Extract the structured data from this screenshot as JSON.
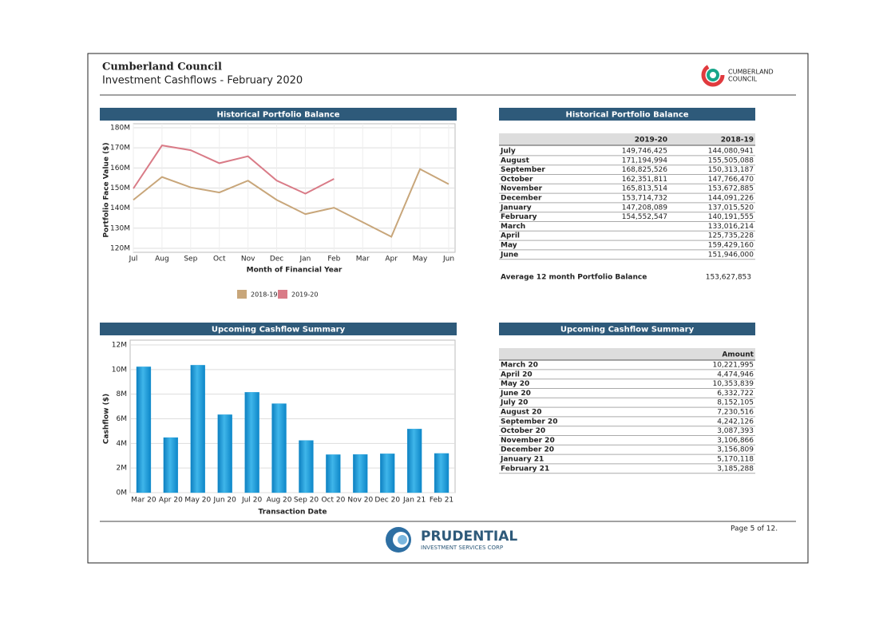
{
  "header": {
    "title": "Cumberland Council",
    "subtitle": "Investment Cashflows - February 2020",
    "logo_text": [
      "CUMBERLAND",
      "COUNCIL"
    ]
  },
  "chart_data": [
    {
      "type": "line",
      "title": "Historical Portfolio Balance",
      "y_label": "Portfolio Face Value ($)",
      "x_label": "Month of Financial Year",
      "categories": [
        "Jul",
        "Aug",
        "Sep",
        "Oct",
        "Nov",
        "Dec",
        "Jan",
        "Feb",
        "Mar",
        "Apr",
        "May",
        "Jun"
      ],
      "series": [
        {
          "name": "2018-19",
          "color": "#c8a67a",
          "values": [
            144080941,
            155505088,
            150313187,
            147766470,
            153672885,
            144091226,
            137015520,
            140191555,
            133016214,
            125735228,
            159429160,
            151946000
          ]
        },
        {
          "name": "2019-20",
          "color": "#d97b87",
          "values": [
            149746425,
            171194994,
            168825526,
            162351811,
            165813514,
            153714732,
            147208089,
            154552547,
            null,
            null,
            null,
            null
          ]
        }
      ],
      "ylim": [
        118000000,
        180000000
      ],
      "yticks": [
        {
          "value": 120000000,
          "label": "120M"
        },
        {
          "value": 130000000,
          "label": "130M"
        },
        {
          "value": 140000000,
          "label": "140M"
        },
        {
          "value": 150000000,
          "label": "150M"
        },
        {
          "value": 160000000,
          "label": "160M"
        },
        {
          "value": 170000000,
          "label": "170M"
        },
        {
          "value": 180000000,
          "label": "180M"
        }
      ],
      "grid": true,
      "legend": "bottom"
    },
    {
      "type": "bar",
      "title": "Upcoming Cashflow Summary",
      "y_label": "Cashflow ($)",
      "x_label": "Transaction Date",
      "categories": [
        "Mar 20",
        "Apr 20",
        "May 20",
        "Jun 20",
        "Jul 20",
        "Aug 20",
        "Sep 20",
        "Oct 20",
        "Nov 20",
        "Dec 20",
        "Jan 21",
        "Feb 21"
      ],
      "values": [
        10221995,
        4474946,
        10353839,
        6332722,
        8152105,
        7230516,
        4242126,
        3087393,
        3106866,
        3156809,
        5170118,
        3185288
      ],
      "color": "#1a9ad6",
      "ylim": [
        0,
        12000000
      ],
      "yticks": [
        {
          "value": 0,
          "label": "0M"
        },
        {
          "value": 2000000,
          "label": "2M"
        },
        {
          "value": 4000000,
          "label": "4M"
        },
        {
          "value": 6000000,
          "label": "6M"
        },
        {
          "value": 8000000,
          "label": "8M"
        },
        {
          "value": 10000000,
          "label": "10M"
        },
        {
          "value": 12000000,
          "label": "12M"
        }
      ],
      "grid": true
    }
  ],
  "tables": [
    {
      "title": "Historical Portfolio Balance",
      "columns": [
        "2019-20",
        "2018-19"
      ],
      "rows": [
        [
          "July",
          "149,746,425",
          "144,080,941"
        ],
        [
          "August",
          "171,194,994",
          "155,505,088"
        ],
        [
          "September",
          "168,825,526",
          "150,313,187"
        ],
        [
          "October",
          "162,351,811",
          "147,766,470"
        ],
        [
          "November",
          "165,813,514",
          "153,672,885"
        ],
        [
          "December",
          "153,714,732",
          "144,091,226"
        ],
        [
          "January",
          "147,208,089",
          "137,015,520"
        ],
        [
          "February",
          "154,552,547",
          "140,191,555"
        ],
        [
          "March",
          null,
          "133,016,214"
        ],
        [
          "April",
          null,
          "125,735,228"
        ],
        [
          "May",
          null,
          "159,429,160"
        ],
        [
          "June",
          null,
          "151,946,000"
        ]
      ],
      "summary": [
        "Average 12 month Portfolio Balance",
        "153,627,853"
      ]
    },
    {
      "title": "Upcoming Cashflow Summary",
      "columns": [
        "Amount"
      ],
      "rows": [
        [
          "March 20",
          "10,221,995"
        ],
        [
          "April 20",
          "4,474,946"
        ],
        [
          "May 20",
          "10,353,839"
        ],
        [
          "June 20",
          "6,332,722"
        ],
        [
          "July 20",
          "8,152,105"
        ],
        [
          "August 20",
          "7,230,516"
        ],
        [
          "September 20",
          "4,242,126"
        ],
        [
          "October 20",
          "3,087,393"
        ],
        [
          "November 20",
          "3,106,866"
        ],
        [
          "December 20",
          "3,156,809"
        ],
        [
          "January 21",
          "5,170,118"
        ],
        [
          "February 21",
          "3,185,288"
        ]
      ]
    }
  ],
  "footer": {
    "page": "Page 5 of 12.",
    "logo": "PRUDENTIAL",
    "logo_sub": "INVESTMENT SERVICES CORP"
  }
}
